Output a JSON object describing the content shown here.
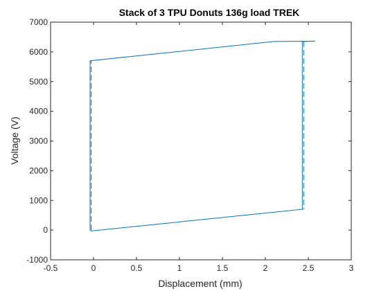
{
  "chart_data": {
    "type": "line",
    "title": "Stack of 3 TPU Donuts 136g load TREK",
    "xlabel": "Displacement (mm)",
    "ylabel": "Voltage (V)",
    "xlim": [
      -0.5,
      3
    ],
    "ylim": [
      -1000,
      7000
    ],
    "xticks": [
      -0.5,
      0,
      0.5,
      1,
      1.5,
      2,
      2.5,
      3
    ],
    "xtick_labels": [
      "-0.5",
      "0",
      "0.5",
      "1",
      "1.5",
      "2",
      "2.5",
      "3"
    ],
    "yticks": [
      -1000,
      0,
      1000,
      2000,
      3000,
      4000,
      5000,
      6000,
      7000
    ],
    "ytick_labels": [
      "-1000",
      "0",
      "1000",
      "2000",
      "3000",
      "4000",
      "5000",
      "6000",
      "7000"
    ],
    "grid": false,
    "box": true,
    "series": [
      {
        "color": "#0072BD",
        "x": [
          -0.04,
          -0.04,
          2.1,
          2.58,
          2.43,
          2.43,
          -0.03,
          -0.04
        ],
        "y": [
          0,
          5700,
          6350,
          6360,
          6350,
          700,
          -30,
          0
        ]
      }
    ]
  }
}
